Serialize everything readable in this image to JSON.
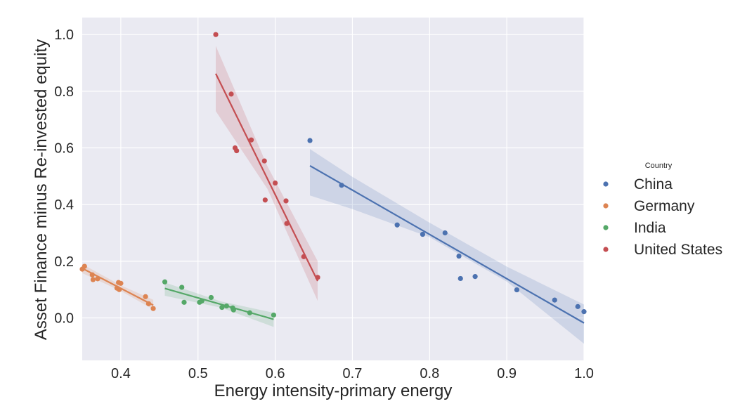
{
  "chart_data": {
    "type": "scatter",
    "xlabel": "Energy intensity-primary energy",
    "ylabel": "Asset Finance minus Re-invested equity",
    "xlim": [
      0.35,
      1.0
    ],
    "ylim": [
      -0.15,
      1.06
    ],
    "x_ticks": [
      0.4,
      0.5,
      0.6,
      0.7,
      0.8,
      0.9,
      1.0
    ],
    "x_tick_labels": [
      "0.4",
      "0.5",
      "0.6",
      "0.7",
      "0.8",
      "0.9",
      "1.0"
    ],
    "y_ticks": [
      0.0,
      0.2,
      0.4,
      0.6,
      0.8,
      1.0
    ],
    "y_tick_labels": [
      "0.0",
      "0.2",
      "0.4",
      "0.6",
      "0.8",
      "1.0"
    ],
    "grid": true,
    "background": "#eaeaf2",
    "legend": {
      "title": "Country",
      "placement": "right"
    },
    "series": [
      {
        "name": "China",
        "color": "#4c72b0",
        "points": [
          [
            0.645,
            0.626
          ],
          [
            0.686,
            0.468
          ],
          [
            0.758,
            0.328
          ],
          [
            0.791,
            0.295
          ],
          [
            0.82,
            0.3
          ],
          [
            0.838,
            0.218
          ],
          [
            0.84,
            0.139
          ],
          [
            0.859,
            0.146
          ],
          [
            0.913,
            0.099
          ],
          [
            0.962,
            0.063
          ],
          [
            0.992,
            0.04
          ],
          [
            1.0,
            0.022
          ]
        ],
        "fit": {
          "x": [
            0.645,
            1.0
          ],
          "y": [
            0.537,
            -0.018
          ]
        },
        "band": {
          "x": [
            0.645,
            0.7,
            0.8,
            0.9,
            1.0
          ],
          "upper": [
            0.596,
            0.498,
            0.336,
            0.181,
            0.047
          ],
          "lower": [
            0.432,
            0.384,
            0.285,
            0.128,
            -0.091
          ]
        }
      },
      {
        "name": "Germany",
        "color": "#dd8452",
        "points": [
          [
            0.35,
            0.172
          ],
          [
            0.353,
            0.182
          ],
          [
            0.363,
            0.152
          ],
          [
            0.364,
            0.135
          ],
          [
            0.37,
            0.138
          ],
          [
            0.395,
            0.105
          ],
          [
            0.397,
            0.125
          ],
          [
            0.398,
            0.1
          ],
          [
            0.4,
            0.122
          ],
          [
            0.432,
            0.075
          ],
          [
            0.436,
            0.05
          ],
          [
            0.442,
            0.033
          ]
        ],
        "fit": {
          "x": [
            0.35,
            0.442
          ],
          "y": [
            0.175,
            0.045
          ]
        },
        "band": {
          "x": [
            0.35,
            0.4,
            0.442
          ],
          "upper": [
            0.19,
            0.115,
            0.064
          ],
          "lower": [
            0.158,
            0.095,
            0.03
          ]
        }
      },
      {
        "name": "India",
        "color": "#55a868",
        "points": [
          [
            0.457,
            0.127
          ],
          [
            0.479,
            0.108
          ],
          [
            0.482,
            0.055
          ],
          [
            0.502,
            0.055
          ],
          [
            0.505,
            0.06
          ],
          [
            0.517,
            0.072
          ],
          [
            0.531,
            0.037
          ],
          [
            0.537,
            0.042
          ],
          [
            0.545,
            0.035
          ],
          [
            0.546,
            0.028
          ],
          [
            0.567,
            0.018
          ],
          [
            0.598,
            0.01
          ]
        ],
        "fit": {
          "x": [
            0.457,
            0.598
          ],
          "y": [
            0.104,
            -0.005
          ]
        },
        "band": {
          "x": [
            0.457,
            0.53,
            0.598
          ],
          "upper": [
            0.125,
            0.058,
            0.018
          ],
          "lower": [
            0.078,
            0.036,
            -0.032
          ]
        }
      },
      {
        "name": "United States",
        "color": "#c44e52",
        "points": [
          [
            0.523,
            1.0
          ],
          [
            0.543,
            0.79
          ],
          [
            0.548,
            0.6
          ],
          [
            0.55,
            0.59
          ],
          [
            0.569,
            0.628
          ],
          [
            0.586,
            0.554
          ],
          [
            0.587,
            0.416
          ],
          [
            0.6,
            0.476
          ],
          [
            0.614,
            0.413
          ],
          [
            0.615,
            0.333
          ],
          [
            0.637,
            0.216
          ],
          [
            0.655,
            0.143
          ]
        ],
        "fit": {
          "x": [
            0.523,
            0.655
          ],
          "y": [
            0.862,
            0.13
          ]
        },
        "band": {
          "x": [
            0.523,
            0.59,
            0.655
          ],
          "upper": [
            0.96,
            0.535,
            0.2
          ],
          "lower": [
            0.73,
            0.455,
            0.06
          ]
        }
      }
    ]
  }
}
